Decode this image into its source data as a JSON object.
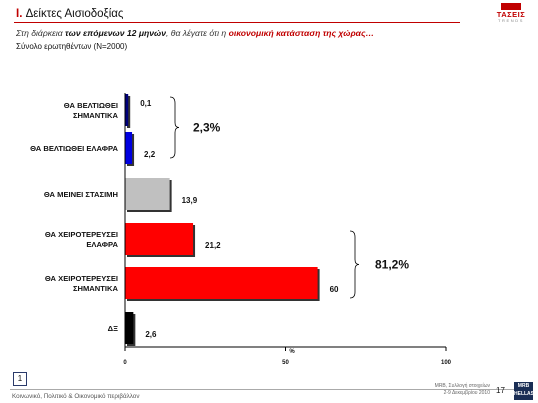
{
  "header": {
    "section_number": "I.",
    "title": "Δείκτες Αισιοδοξίας",
    "subtitle_pre": "Στη διάρκεια ",
    "subtitle_bold": "των επόμενων 12 μηνών",
    "subtitle_mid": ", θα λέγατε ότι η ",
    "subtitle_red": "οικονομική κατάσταση της χώρας…",
    "sample": "Σύνολο ερωτηθέντων (N=2000)"
  },
  "logo": {
    "name": "ΤΑΣΕΙΣ",
    "tagline": "TRENDS"
  },
  "colors": {
    "accent": "#c00000",
    "dark_blue": "#00007a",
    "blue": "#0000e0",
    "gray": "#c0c0c0",
    "red": "#ff0000",
    "black": "#000000"
  },
  "chart_data": {
    "type": "bar",
    "orientation": "horizontal",
    "categories": [
      [
        "ΘΑ ΒΕΛΤΙΩΘΕΙ",
        "ΣΗΜΑΝΤΙΚΑ"
      ],
      [
        "ΘΑ ΒΕΛΤΙΩΘΕΙ ΕΛΑΦΡΑ"
      ],
      [
        "ΘΑ ΜΕΙΝΕΙ ΣΤΑΣΙΜΗ"
      ],
      [
        "ΘΑ ΧΕΙΡΟΤΕΡΕΥΣΕΙ",
        "ΕΛΑΦΡΑ"
      ],
      [
        "ΘΑ ΧΕΙΡΟΤΕΡΕΥΣΕΙ",
        "ΣΗΜΑΝΤΙΚΑ"
      ],
      [
        "ΔΞ"
      ]
    ],
    "values": [
      0.1,
      2.2,
      13.9,
      21.2,
      60,
      2.6
    ],
    "value_labels": [
      "0,1",
      "2,2",
      "13,9",
      "21,2",
      "60",
      "2,6"
    ],
    "bar_colors": [
      "#00007a",
      "#0000e0",
      "#c0c0c0",
      "#ff0000",
      "#ff0000",
      "#000000"
    ],
    "xlim": [
      0,
      100
    ],
    "xticks": [
      0,
      50,
      100
    ],
    "xlabel": "%",
    "groups": [
      {
        "from": 0,
        "to": 1,
        "label": "2,3%"
      },
      {
        "from": 3,
        "to": 4,
        "label": "81,2%"
      }
    ]
  },
  "footer": {
    "page_box": "1",
    "left_text": "Κοινωνικό, Πολιτικό & Οικονομικό περιβάλλον",
    "right_line1": "MRB, Συλλογή στοιχείων",
    "right_line2": "2-9 Δεκεμβρίου 2010",
    "page_number": "17",
    "logo_top": "MRB",
    "logo_bottom": "HELLAS"
  }
}
